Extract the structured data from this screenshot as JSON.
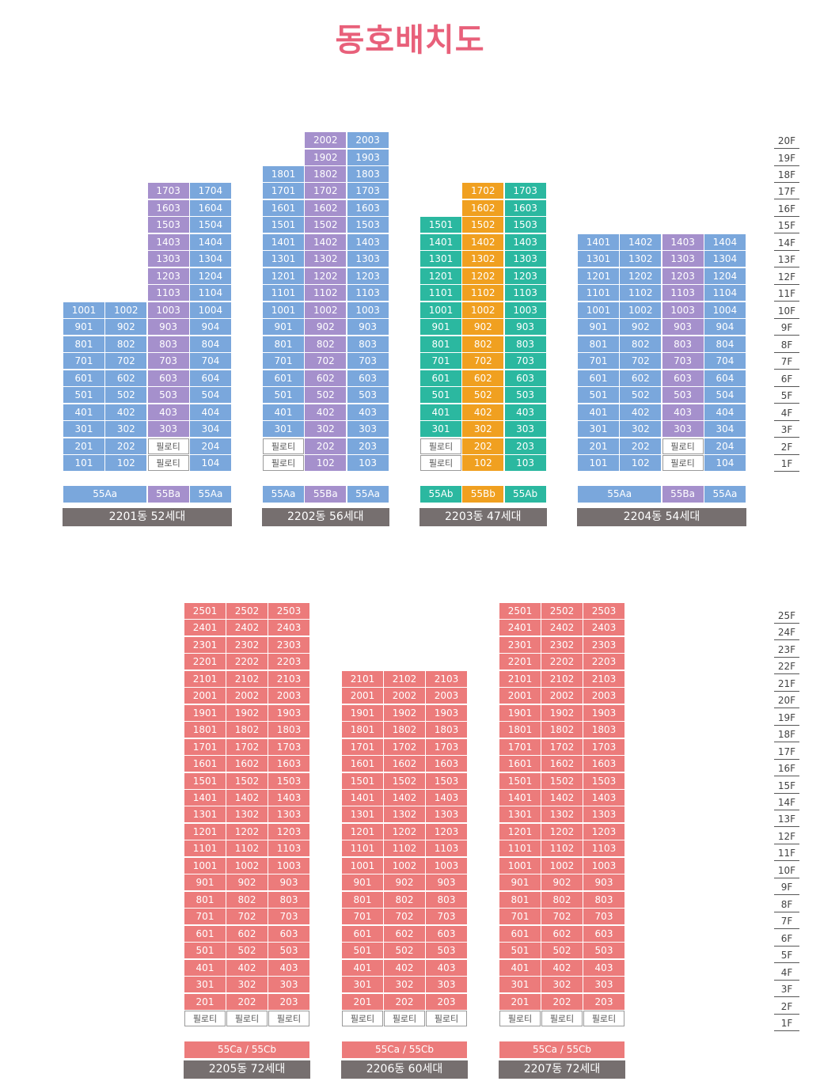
{
  "title": "동호배치도",
  "upper": {
    "floors": [
      "20F",
      "19F",
      "18F",
      "17F",
      "16F",
      "15F",
      "14F",
      "13F",
      "12F",
      "11F",
      "10F",
      "9F",
      "8F",
      "7F",
      "6F",
      "5F",
      "4F",
      "3F",
      "2F",
      "1F"
    ],
    "buildings": [
      {
        "name": "2201동 52세대",
        "columns": [
          {
            "color": "#7aa7dc",
            "units": [
              1001,
              901,
              801,
              701,
              601,
              501,
              401,
              301,
              201,
              101
            ]
          },
          {
            "color": "#7aa7dc",
            "units": [
              1002,
              902,
              802,
              702,
              602,
              502,
              402,
              302,
              202,
              102
            ]
          },
          {
            "color": "#a590cc",
            "units": [
              1703,
              1603,
              1503,
              1403,
              1303,
              1203,
              1103,
              1003,
              903,
              803,
              703,
              603,
              503,
              403,
              303,
              "필로티",
              "필로티"
            ]
          },
          {
            "color": "#7aa7dc",
            "units": [
              1704,
              1604,
              1504,
              1404,
              1304,
              1204,
              1104,
              1004,
              904,
              804,
              704,
              604,
              504,
              404,
              304,
              204,
              104
            ]
          }
        ],
        "types": [
          {
            "label": "55Aa",
            "span": 2,
            "color": "#7aa7dc"
          },
          {
            "label": "55Ba",
            "span": 1,
            "color": "#a590cc"
          },
          {
            "label": "55Aa",
            "span": 1,
            "color": "#7aa7dc"
          }
        ]
      },
      {
        "name": "2202동 56세대",
        "columns": [
          {
            "color": "#7aa7dc",
            "units": [
              1801,
              1701,
              1601,
              1501,
              1401,
              1301,
              1201,
              1101,
              1001,
              901,
              801,
              701,
              601,
              501,
              401,
              301,
              "필로티",
              "필로티"
            ]
          },
          {
            "color": "#a590cc",
            "units": [
              2002,
              1902,
              1802,
              1702,
              1602,
              1502,
              1402,
              1302,
              1202,
              1102,
              1002,
              902,
              802,
              702,
              602,
              502,
              402,
              302,
              202,
              102
            ]
          },
          {
            "color": "#7aa7dc",
            "units": [
              2003,
              1903,
              1803,
              1703,
              1603,
              1503,
              1403,
              1303,
              1203,
              1103,
              1003,
              903,
              803,
              703,
              603,
              503,
              403,
              303,
              203,
              103
            ]
          }
        ],
        "types": [
          {
            "label": "55Aa",
            "span": 1,
            "color": "#7aa7dc"
          },
          {
            "label": "55Ba",
            "span": 1,
            "color": "#a590cc"
          },
          {
            "label": "55Aa",
            "span": 1,
            "color": "#7aa7dc"
          }
        ]
      },
      {
        "name": "2203동 47세대",
        "columns": [
          {
            "color": "#2bb8a0",
            "units": [
              1501,
              1401,
              1301,
              1201,
              1101,
              1001,
              901,
              801,
              701,
              601,
              501,
              401,
              301,
              "필로티",
              "필로티"
            ]
          },
          {
            "color": "#f0a020",
            "units": [
              1702,
              1602,
              1502,
              1402,
              1302,
              1202,
              1102,
              1002,
              902,
              802,
              702,
              602,
              502,
              402,
              302,
              202,
              102
            ]
          },
          {
            "color": "#2bb8a0",
            "units": [
              1703,
              1603,
              1503,
              1403,
              1303,
              1203,
              1103,
              1003,
              903,
              803,
              703,
              603,
              503,
              403,
              303,
              203,
              103
            ]
          }
        ],
        "types": [
          {
            "label": "55Ab",
            "span": 1,
            "color": "#2bb8a0"
          },
          {
            "label": "55Bb",
            "span": 1,
            "color": "#f0a020"
          },
          {
            "label": "55Ab",
            "span": 1,
            "color": "#2bb8a0"
          }
        ]
      },
      {
        "name": "2204동 54세대",
        "columns": [
          {
            "color": "#7aa7dc",
            "units": [
              1401,
              1301,
              1201,
              1101,
              1001,
              901,
              801,
              701,
              601,
              501,
              401,
              301,
              201,
              101
            ]
          },
          {
            "color": "#7aa7dc",
            "units": [
              1402,
              1302,
              1202,
              1102,
              1002,
              902,
              802,
              702,
              602,
              502,
              402,
              302,
              202,
              102
            ]
          },
          {
            "color": "#a590cc",
            "units": [
              1403,
              1303,
              1203,
              1103,
              1003,
              903,
              803,
              703,
              603,
              503,
              403,
              303,
              "필로티",
              "필로티"
            ]
          },
          {
            "color": "#7aa7dc",
            "units": [
              1404,
              1304,
              1204,
              1104,
              1004,
              904,
              804,
              704,
              604,
              504,
              404,
              304,
              204,
              104
            ]
          }
        ],
        "types": [
          {
            "label": "55Aa",
            "span": 2,
            "color": "#7aa7dc"
          },
          {
            "label": "55Ba",
            "span": 1,
            "color": "#a590cc"
          },
          {
            "label": "55Aa",
            "span": 1,
            "color": "#7aa7dc"
          }
        ]
      }
    ]
  },
  "lower": {
    "floors": [
      "25F",
      "24F",
      "23F",
      "22F",
      "21F",
      "20F",
      "19F",
      "18F",
      "17F",
      "16F",
      "15F",
      "14F",
      "13F",
      "12F",
      "11F",
      "10F",
      "9F",
      "8F",
      "7F",
      "6F",
      "5F",
      "4F",
      "3F",
      "2F",
      "1F"
    ],
    "buildings": [
      {
        "name": "2205동 72세대",
        "columns": [
          {
            "color": "#ec7b7b",
            "units": [
              2501,
              2401,
              2301,
              2201,
              2101,
              2001,
              1901,
              1801,
              1701,
              1601,
              1501,
              1401,
              1301,
              1201,
              1101,
              1001,
              901,
              801,
              701,
              601,
              501,
              401,
              301,
              201,
              "필로티"
            ]
          },
          {
            "color": "#ec7b7b",
            "units": [
              2502,
              2402,
              2302,
              2202,
              2102,
              2002,
              1902,
              1802,
              1702,
              1602,
              1502,
              1402,
              1302,
              1202,
              1102,
              1002,
              902,
              802,
              702,
              602,
              502,
              402,
              302,
              202,
              "필로티"
            ]
          },
          {
            "color": "#ec7b7b",
            "units": [
              2503,
              2403,
              2303,
              2203,
              2103,
              2003,
              1903,
              1803,
              1703,
              1603,
              1503,
              1403,
              1303,
              1203,
              1103,
              1003,
              903,
              803,
              703,
              603,
              503,
              403,
              303,
              203,
              "필로티"
            ]
          }
        ],
        "types": [
          {
            "label": "55Ca / 55Cb",
            "span": 3,
            "color": "#ec7b7b"
          }
        ]
      },
      {
        "name": "2206동 60세대",
        "columns": [
          {
            "color": "#ec7b7b",
            "units": [
              2101,
              2001,
              1901,
              1801,
              1701,
              1601,
              1501,
              1401,
              1301,
              1201,
              1101,
              1001,
              901,
              801,
              701,
              601,
              501,
              401,
              301,
              201,
              "필로티"
            ]
          },
          {
            "color": "#ec7b7b",
            "units": [
              2102,
              2002,
              1902,
              1802,
              1702,
              1602,
              1502,
              1402,
              1302,
              1202,
              1102,
              1002,
              902,
              802,
              702,
              602,
              502,
              402,
              302,
              202,
              "필로티"
            ]
          },
          {
            "color": "#ec7b7b",
            "units": [
              2103,
              2003,
              1903,
              1803,
              1703,
              1603,
              1503,
              1403,
              1303,
              1203,
              1103,
              1003,
              903,
              803,
              703,
              603,
              503,
              403,
              303,
              203,
              "필로티"
            ]
          }
        ],
        "types": [
          {
            "label": "55Ca / 55Cb",
            "span": 3,
            "color": "#ec7b7b"
          }
        ]
      },
      {
        "name": "2207동 72세대",
        "columns": [
          {
            "color": "#ec7b7b",
            "units": [
              2501,
              2401,
              2301,
              2201,
              2101,
              2001,
              1901,
              1801,
              1701,
              1601,
              1501,
              1401,
              1301,
              1201,
              1101,
              1001,
              901,
              801,
              701,
              601,
              501,
              401,
              301,
              201,
              "필로티"
            ]
          },
          {
            "color": "#ec7b7b",
            "units": [
              2502,
              2402,
              2302,
              2202,
              2102,
              2002,
              1902,
              1802,
              1702,
              1602,
              1502,
              1402,
              1302,
              1202,
              1102,
              1002,
              902,
              802,
              702,
              602,
              502,
              402,
              302,
              202,
              "필로티"
            ]
          },
          {
            "color": "#ec7b7b",
            "units": [
              2503,
              2403,
              2303,
              2203,
              2103,
              2003,
              1903,
              1803,
              1703,
              1603,
              1503,
              1403,
              1303,
              1203,
              1103,
              1003,
              903,
              803,
              703,
              603,
              503,
              403,
              303,
              203,
              "필로티"
            ]
          }
        ],
        "types": [
          {
            "label": "55Ca / 55Cb",
            "span": 3,
            "color": "#ec7b7b"
          }
        ]
      }
    ]
  }
}
